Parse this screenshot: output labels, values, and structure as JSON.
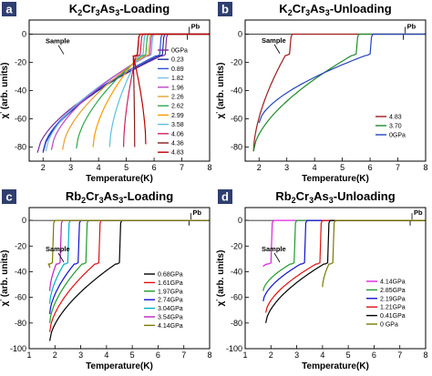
{
  "chart_data": [
    {
      "panel_label": "a",
      "type": "line",
      "title": "K2Cr3As3-Loading",
      "title_parts": [
        [
          "K",
          ""
        ],
        [
          "2",
          "sub"
        ],
        [
          "Cr",
          ""
        ],
        [
          "3",
          "sub"
        ],
        [
          "As",
          ""
        ],
        [
          "3",
          "sub"
        ],
        [
          "-Loading",
          ""
        ]
      ],
      "xlabel": "Temperature(K)",
      "ylabel_main": "χ",
      "ylabel_sup": "'",
      "ylabel_rest": " (arb. units)",
      "xlim": [
        1.5,
        8
      ],
      "ylim": [
        -90,
        10
      ],
      "xticks": [
        "2",
        "3",
        "4",
        "5",
        "6",
        "7",
        "8"
      ],
      "yticks": [
        "0",
        "-20",
        "-40",
        "-60",
        "-80"
      ],
      "annotations": {
        "sample": "Sample",
        "pb": "Pb"
      },
      "tc_pb": 7.2,
      "legend_position": "right",
      "series": [
        {
          "name": "0GPa",
          "color": "#7b2d9c",
          "tc": 6.4,
          "tmin": 1.8,
          "plateau": -15.5,
          "end": -84
        },
        {
          "name": "0.23",
          "color": "#1e2d9a",
          "tc": 6.3,
          "tmin": 2.0,
          "plateau": -15.5,
          "end": -84
        },
        {
          "name": "0.89",
          "color": "#2e4fd6",
          "tc": 6.2,
          "tmin": 2.0,
          "plateau": -15.5,
          "end": -83
        },
        {
          "name": "1.82",
          "color": "#7ac0e8",
          "tc": 5.9,
          "tmin": 2.1,
          "plateau": -15.5,
          "end": -83
        },
        {
          "name": "1.96",
          "color": "#c040c8",
          "tc": 5.85,
          "tmin": 2.3,
          "plateau": -15.5,
          "end": -82
        },
        {
          "name": "2.26",
          "color": "#e8a030",
          "tc": 5.8,
          "tmin": 2.7,
          "plateau": -15.5,
          "end": -82
        },
        {
          "name": "2.62",
          "color": "#2da84a",
          "tc": 5.7,
          "tmin": 3.2,
          "plateau": -15.5,
          "end": -81
        },
        {
          "name": "2.99",
          "color": "#ff9900",
          "tc": 5.6,
          "tmin": 3.8,
          "plateau": -15.5,
          "end": -80
        },
        {
          "name": "3.58",
          "color": "#5cc0e0",
          "tc": 5.6,
          "tmin": 4.4,
          "plateau": -15.5,
          "end": -80
        },
        {
          "name": "4.06",
          "color": "#d1205c",
          "tc": 5.5,
          "tmin": 4.9,
          "plateau": -15.5,
          "end": -80
        },
        {
          "name": "4.36",
          "color": "#8a1c1c",
          "tc": 5.4,
          "tmin": 5.3,
          "plateau": -15.5,
          "end": -80
        },
        {
          "name": "4.83",
          "color": "#c00000",
          "tc": 5.4,
          "tmin": 5.7,
          "plateau": -15.5,
          "end": -78
        }
      ]
    },
    {
      "panel_label": "b",
      "type": "line",
      "title": "K2Cr3As3-Unloading",
      "title_parts": [
        [
          "K",
          ""
        ],
        [
          "2",
          "sub"
        ],
        [
          "Cr",
          ""
        ],
        [
          "3",
          "sub"
        ],
        [
          "As",
          ""
        ],
        [
          "3",
          "sub"
        ],
        [
          "-Unloading",
          ""
        ]
      ],
      "xlabel": "Temperature(K)",
      "ylabel_main": "χ",
      "ylabel_sup": "'",
      "ylabel_rest": " (arb. units)",
      "xlim": [
        1.5,
        8
      ],
      "ylim": [
        -90,
        10
      ],
      "xticks": [
        "2",
        "3",
        "4",
        "5",
        "6",
        "7",
        "8"
      ],
      "yticks": [
        "0",
        "-20",
        "-40",
        "-60",
        "-80"
      ],
      "annotations": {
        "sample": "Sample",
        "pb": "Pb"
      },
      "tc_pb": 7.2,
      "legend_position": "bottom-right",
      "series": [
        {
          "name": "4.83",
          "color": "#9c1c1c",
          "tc": 3.1,
          "tmin": 1.8,
          "plateau": -15,
          "end": -83
        },
        {
          "name": "3.70",
          "color": "#1f8a2c",
          "tc": 5.5,
          "tmin": 1.8,
          "plateau": -15,
          "end": -83
        },
        {
          "name": "0GPa",
          "color": "#2244bb",
          "tc": 6.0,
          "tmin": 2.0,
          "plateau": -15,
          "end": -63
        }
      ]
    },
    {
      "panel_label": "c",
      "type": "line",
      "title": "Rb2Cr3As3-Loading",
      "title_parts": [
        [
          "Rb",
          ""
        ],
        [
          "2",
          "sub"
        ],
        [
          "Cr",
          ""
        ],
        [
          "3",
          "sub"
        ],
        [
          "As",
          ""
        ],
        [
          "3",
          "sub"
        ],
        [
          "-Loading",
          ""
        ]
      ],
      "xlabel": "Temperature(K)",
      "ylabel_main": "χ",
      "ylabel_sup": "'",
      "ylabel_rest": " (arb. units)",
      "xlim": [
        1,
        8
      ],
      "ylim": [
        -100,
        10
      ],
      "xticks": [
        "1",
        "2",
        "3",
        "4",
        "5",
        "6",
        "7",
        "8"
      ],
      "yticks": [
        "0",
        "-20",
        "-40",
        "-60",
        "-80",
        "-100"
      ],
      "annotations": {
        "sample": "Sample",
        "pb": "Pb"
      },
      "tc_pb": 7.2,
      "legend_position": "bottom-right",
      "series": [
        {
          "name": "0.68GPa",
          "color": "#000000",
          "tc": 4.5,
          "tmin": 1.8,
          "plateau": -34,
          "end": -94
        },
        {
          "name": "1.61GPa",
          "color": "#e01010",
          "tc": 3.7,
          "tmin": 1.8,
          "plateau": -34,
          "end": -87
        },
        {
          "name": "1.97GPa",
          "color": "#1f9a2c",
          "tc": 3.2,
          "tmin": 1.8,
          "plateau": -34,
          "end": -80
        },
        {
          "name": "2.74GPa",
          "color": "#1010d0",
          "tc": 2.9,
          "tmin": 1.8,
          "plateau": -34,
          "end": -73
        },
        {
          "name": "3.04GPa",
          "color": "#00b0c0",
          "tc": 2.5,
          "tmin": 1.8,
          "plateau": -34,
          "end": -65
        },
        {
          "name": "3.54GPa",
          "color": "#c020c0",
          "tc": 2.2,
          "tmin": 1.8,
          "plateau": -34,
          "end": -55
        },
        {
          "name": "4.14GPa",
          "color": "#7a7a00",
          "tc": 1.9,
          "tmin": 1.8,
          "plateau": -34,
          "end": -37
        }
      ]
    },
    {
      "panel_label": "d",
      "type": "line",
      "title": "Rb2Cr3As3-Unloading",
      "title_parts": [
        [
          "Rb",
          ""
        ],
        [
          "2",
          "sub"
        ],
        [
          "Cr",
          ""
        ],
        [
          "3",
          "sub"
        ],
        [
          "As",
          ""
        ],
        [
          "3",
          "sub"
        ],
        [
          "-Unloading",
          ""
        ]
      ],
      "xlabel": "Temperature(K)",
      "ylabel_main": "χ",
      "ylabel_sup": "'",
      "ylabel_rest": " (arb. units)",
      "xlim": [
        1,
        8
      ],
      "ylim": [
        -100,
        10
      ],
      "xticks": [
        "1",
        "2",
        "3",
        "4",
        "5",
        "6",
        "7",
        "8"
      ],
      "yticks": [
        "0",
        "-20",
        "-40",
        "-60",
        "-80",
        "-100"
      ],
      "annotations": {
        "sample": "Sample",
        "pb": "Pb"
      },
      "tc_pb": 7.4,
      "legend_position": "bottom-right",
      "series": [
        {
          "name": "4.14GPa",
          "color": "#e020e0",
          "tc": 2.0,
          "tmin": 1.7,
          "plateau": -34,
          "end": -36
        },
        {
          "name": "2.85GPa",
          "color": "#1f9a2c",
          "tc": 2.9,
          "tmin": 1.7,
          "plateau": -34,
          "end": -55
        },
        {
          "name": "2.19GPa",
          "color": "#1010d0",
          "tc": 3.3,
          "tmin": 1.7,
          "plateau": -34,
          "end": -63
        },
        {
          "name": "1.21GPa",
          "color": "#e01010",
          "tc": 3.9,
          "tmin": 1.8,
          "plateau": -34,
          "end": -72
        },
        {
          "name": "0.41GPa",
          "color": "#000000",
          "tc": 4.2,
          "tmin": 1.8,
          "plateau": -34,
          "end": -80
        },
        {
          "name": "0 GPa",
          "color": "#7a7a00",
          "tc": 4.4,
          "tmin": 4.0,
          "plateau": -34,
          "end": -52
        }
      ]
    }
  ],
  "colors": {
    "panel_label_bg": "#2e3f6f"
  }
}
